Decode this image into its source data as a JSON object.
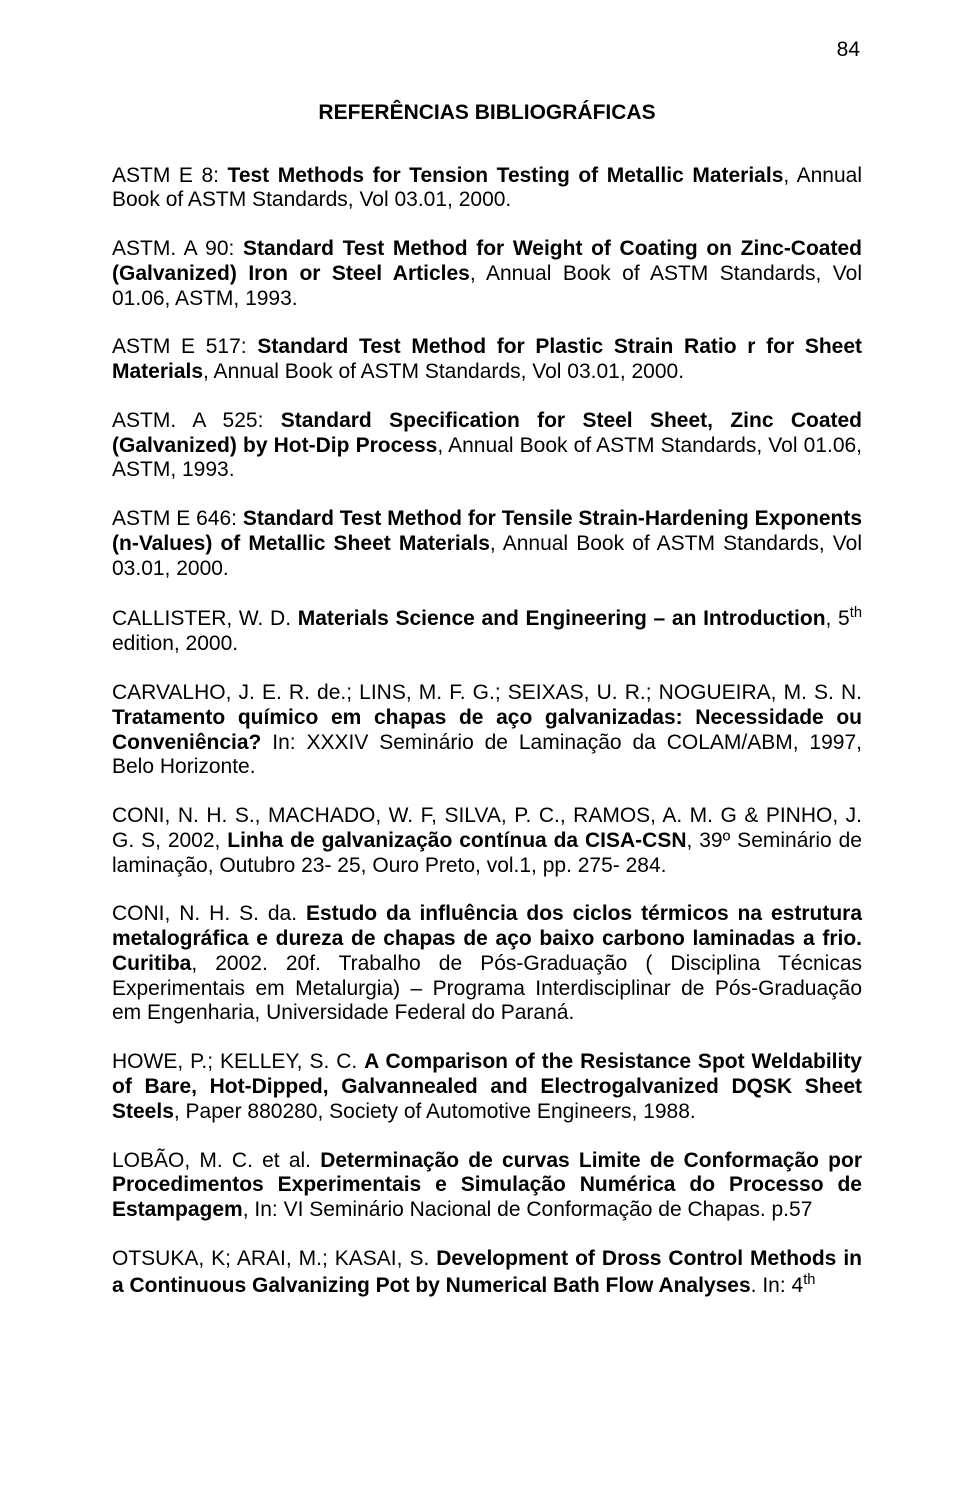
{
  "page_number": "84",
  "heading": "REFERÊNCIAS BIBLIOGRÁFICAS",
  "refs": [
    {
      "pre": "ASTM E 8: ",
      "bold": "Test Methods for Tension Testing of Metallic Materials",
      "post": ", Annual Book of ASTM Standards, Vol 03.01, 2000."
    },
    {
      "pre": "ASTM. A 90: ",
      "bold": "Standard Test Method for Weight of Coating on Zinc-Coated (Galvanized) Iron or Steel Articles",
      "post": ", Annual Book of ASTM Standards, Vol 01.06, ASTM, 1993."
    },
    {
      "pre": "ASTM E 517: ",
      "bold": "Standard Test Method for Plastic Strain Ratio r for Sheet Materials",
      "post": ", Annual Book of ASTM Standards, Vol 03.01, 2000."
    },
    {
      "pre": "ASTM. A 525: ",
      "bold": "Standard Specification for Steel Sheet, Zinc Coated (Galvanized) by Hot-Dip Process",
      "post": ", Annual Book of ASTM Standards, Vol 01.06, ASTM, 1993."
    },
    {
      "pre": "ASTM E 646: ",
      "bold": "Standard Test Method for Tensile Strain-Hardening Exponents (n-Values) of Metallic Sheet Materials",
      "post": ", Annual Book of ASTM Standards, Vol 03.01, 2000."
    },
    {
      "pre": "CALLISTER, W. D. ",
      "bold": "Materials Science and Engineering – an Introduction",
      "post": ", 5",
      "sup": "th",
      "post2": " edition, 2000."
    },
    {
      "pre": "CARVALHO, J. E. R. de.; LINS, M. F. G.;  SEIXAS, U. R.;  NOGUEIRA, M. S. N. ",
      "bold": "Tratamento químico em chapas de aço galvanizadas: Necessidade ou Conveniência?",
      "post": " In: XXXIV Seminário de Laminação da COLAM/ABM, 1997, Belo Horizonte."
    },
    {
      "pre": "CONI, N. H. S., MACHADO, W. F, SILVA, P. C., RAMOS, A. M. G & PINHO, J. G. S, 2002, ",
      "bold": "Linha de galvanização contínua da CISA-CSN",
      "post": ", 39º Seminário de laminação, Outubro 23- 25, Ouro Preto, vol.1, pp. 275- 284."
    },
    {
      "pre": "CONI, N. H. S. da. ",
      "bold": "Estudo da influência dos ciclos térmicos na estrutura metalográfica e dureza de chapas de aço baixo carbono laminadas a frio. Curitiba",
      "post": ", 2002. 20f. Trabalho de Pós-Graduação ( Disciplina Técnicas Experimentais em Metalurgia) – Programa Interdisciplinar de Pós-Graduação em Engenharia, Universidade Federal do Paraná."
    },
    {
      "pre": "HOWE, P.; KELLEY, S. C. ",
      "bold": "A Comparison of the Resistance Spot Weldability of Bare, Hot-Dipped, Galvannealed and Electrogalvanized DQSK Sheet Steels",
      "post": ", Paper 880280, Society of Automotive Engineers, 1988."
    },
    {
      "pre": "LOBÃO, M. C. et al. ",
      "bold": "Determinação de curvas Limite de Conformação por Procedimentos Experimentais e Simulação Numérica do Processo de Estampagem",
      "post": ", In: VI Seminário Nacional de Conformação de Chapas. p.57"
    },
    {
      "pre": "OTSUKA, K; ARAI, M.; KASAI, S. ",
      "bold": "Development of Dross Control Methods in a Continuous Galvanizing Pot by Numerical Bath Flow Analyses",
      "post": ". In: 4",
      "sup": "th",
      "post2": ""
    }
  ]
}
